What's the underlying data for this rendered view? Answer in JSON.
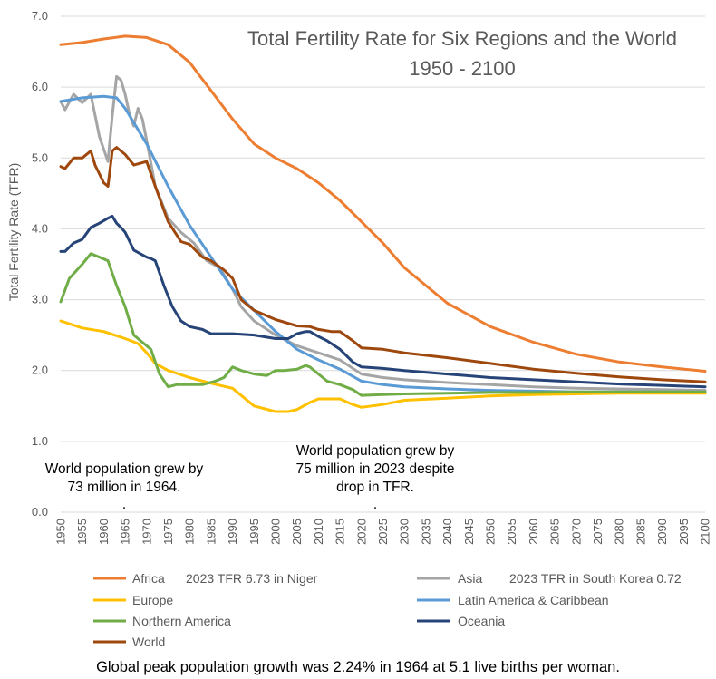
{
  "chart_data": {
    "type": "line",
    "title": "Total Fertility Rate for Six Regions and the World",
    "subtitle": "1950 - 2100",
    "ylabel": "Total Fertility Rate (TFR)",
    "xlabel": "",
    "ylim": [
      0.0,
      7.0
    ],
    "xlim": [
      1950,
      2100
    ],
    "y_ticks": [
      "0.0",
      "1.0",
      "2.0",
      "3.0",
      "4.0",
      "5.0",
      "6.0",
      "7.0"
    ],
    "x_ticks": [
      "1950",
      "1955",
      "1960",
      "1965",
      "1970",
      "1975",
      "1980",
      "1985",
      "1990",
      "1995",
      "2000",
      "2005",
      "2010",
      "2015",
      "2020",
      "2025",
      "2030",
      "2035",
      "2040",
      "2045",
      "2050",
      "2055",
      "2060",
      "2065",
      "2070",
      "2075",
      "2080",
      "2085",
      "2090",
      "2095",
      "2100"
    ],
    "grid": "horizontal",
    "legend_position": "bottom",
    "series": [
      {
        "name": "Africa",
        "color": "#ED7D31",
        "note": "2023 TFR 6.73 in Niger",
        "x": [
          1950,
          1955,
          1960,
          1965,
          1970,
          1975,
          1980,
          1985,
          1990,
          1995,
          2000,
          2005,
          2010,
          2015,
          2020,
          2025,
          2030,
          2040,
          2050,
          2060,
          2070,
          2080,
          2090,
          2100
        ],
        "y": [
          6.6,
          6.63,
          6.68,
          6.72,
          6.7,
          6.6,
          6.35,
          5.95,
          5.55,
          5.2,
          5.0,
          4.85,
          4.65,
          4.4,
          4.1,
          3.8,
          3.45,
          2.95,
          2.62,
          2.4,
          2.23,
          2.12,
          2.05,
          1.99
        ]
      },
      {
        "name": "Asia",
        "color": "#A5A5A5",
        "note": "2023 TFR in South Korea 0.72",
        "x": [
          1950,
          1951,
          1953,
          1955,
          1957,
          1959,
          1961,
          1962,
          1963,
          1964,
          1965,
          1966,
          1967,
          1968,
          1969,
          1970,
          1972,
          1975,
          1978,
          1981,
          1984,
          1987,
          1990,
          1992,
          1995,
          2000,
          2005,
          2010,
          2015,
          2020,
          2025,
          2030,
          2040,
          2050,
          2060,
          2070,
          2080,
          2090,
          2100
        ],
        "y": [
          5.8,
          5.68,
          5.9,
          5.78,
          5.9,
          5.3,
          4.95,
          5.6,
          6.15,
          6.1,
          5.9,
          5.62,
          5.45,
          5.7,
          5.55,
          5.25,
          4.6,
          4.15,
          3.95,
          3.8,
          3.55,
          3.45,
          3.15,
          2.9,
          2.7,
          2.5,
          2.35,
          2.25,
          2.15,
          1.95,
          1.9,
          1.87,
          1.83,
          1.8,
          1.77,
          1.75,
          1.74,
          1.73,
          1.72
        ]
      },
      {
        "name": "Europe",
        "color": "#FFC000",
        "note": "",
        "x": [
          1950,
          1955,
          1960,
          1965,
          1968,
          1970,
          1972,
          1975,
          1980,
          1985,
          1990,
          1995,
          2000,
          2003,
          2005,
          2008,
          2010,
          2015,
          2018,
          2020,
          2025,
          2030,
          2040,
          2050,
          2060,
          2070,
          2080,
          2090,
          2100
        ],
        "y": [
          2.7,
          2.6,
          2.55,
          2.45,
          2.38,
          2.25,
          2.1,
          2.0,
          1.9,
          1.82,
          1.75,
          1.5,
          1.42,
          1.42,
          1.45,
          1.55,
          1.6,
          1.6,
          1.52,
          1.48,
          1.52,
          1.58,
          1.61,
          1.64,
          1.66,
          1.67,
          1.68,
          1.68,
          1.68
        ]
      },
      {
        "name": "Latin America & Caribbean",
        "color": "#5B9BD5",
        "note": "",
        "x": [
          1950,
          1955,
          1960,
          1963,
          1965,
          1970,
          1975,
          1980,
          1985,
          1990,
          1995,
          2000,
          2005,
          2010,
          2015,
          2020,
          2025,
          2030,
          2040,
          2050,
          2060,
          2070,
          2080,
          2090,
          2100
        ],
        "y": [
          5.8,
          5.85,
          5.87,
          5.85,
          5.7,
          5.2,
          4.6,
          4.05,
          3.6,
          3.15,
          2.85,
          2.55,
          2.3,
          2.15,
          2.02,
          1.85,
          1.8,
          1.77,
          1.74,
          1.72,
          1.71,
          1.7,
          1.7,
          1.7,
          1.7
        ]
      },
      {
        "name": "Northern America",
        "color": "#70AD47",
        "note": "",
        "x": [
          1950,
          1952,
          1955,
          1957,
          1959,
          1961,
          1963,
          1965,
          1967,
          1969,
          1971,
          1973,
          1975,
          1977,
          1980,
          1983,
          1986,
          1988,
          1990,
          1992,
          1995,
          1998,
          2000,
          2002,
          2005,
          2007,
          2008,
          2010,
          2012,
          2015,
          2018,
          2020,
          2025,
          2030,
          2040,
          2050,
          2060,
          2070,
          2080,
          2090,
          2100
        ],
        "y": [
          2.97,
          3.3,
          3.5,
          3.65,
          3.6,
          3.55,
          3.2,
          2.9,
          2.5,
          2.4,
          2.3,
          1.95,
          1.77,
          1.8,
          1.8,
          1.8,
          1.85,
          1.9,
          2.05,
          2.0,
          1.95,
          1.93,
          2.0,
          2.0,
          2.02,
          2.07,
          2.05,
          1.95,
          1.85,
          1.8,
          1.73,
          1.65,
          1.66,
          1.67,
          1.68,
          1.69,
          1.69,
          1.7,
          1.7,
          1.7,
          1.7
        ]
      },
      {
        "name": "Oceania",
        "color": "#264478",
        "note": "",
        "x": [
          1950,
          1951,
          1953,
          1955,
          1957,
          1959,
          1961,
          1962,
          1963,
          1964,
          1965,
          1967,
          1970,
          1971,
          1972,
          1974,
          1976,
          1978,
          1980,
          1983,
          1985,
          1990,
          1995,
          2000,
          2003,
          2005,
          2007,
          2008,
          2010,
          2012,
          2015,
          2018,
          2020,
          2025,
          2030,
          2040,
          2050,
          2060,
          2070,
          2080,
          2090,
          2100
        ],
        "y": [
          3.68,
          3.68,
          3.8,
          3.85,
          4.02,
          4.08,
          4.15,
          4.18,
          4.08,
          4.02,
          3.95,
          3.7,
          3.6,
          3.58,
          3.55,
          3.2,
          2.9,
          2.7,
          2.62,
          2.58,
          2.52,
          2.52,
          2.5,
          2.45,
          2.45,
          2.52,
          2.55,
          2.55,
          2.48,
          2.42,
          2.3,
          2.12,
          2.05,
          2.03,
          2.0,
          1.95,
          1.9,
          1.87,
          1.84,
          1.81,
          1.79,
          1.77
        ]
      },
      {
        "name": "World",
        "color": "#9E480E",
        "note": "",
        "x": [
          1950,
          1951,
          1953,
          1955,
          1957,
          1958,
          1960,
          1961,
          1962,
          1963,
          1965,
          1967,
          1970,
          1972,
          1975,
          1978,
          1980,
          1983,
          1985,
          1988,
          1990,
          1992,
          1995,
          2000,
          2005,
          2008,
          2010,
          2013,
          2015,
          2018,
          2020,
          2025,
          2030,
          2040,
          2050,
          2060,
          2070,
          2080,
          2090,
          2100
        ],
        "y": [
          4.88,
          4.85,
          5.0,
          5.0,
          5.1,
          4.9,
          4.65,
          4.6,
          5.1,
          5.15,
          5.05,
          4.9,
          4.95,
          4.6,
          4.1,
          3.82,
          3.78,
          3.6,
          3.55,
          3.42,
          3.3,
          3.0,
          2.85,
          2.72,
          2.63,
          2.62,
          2.58,
          2.55,
          2.55,
          2.42,
          2.32,
          2.3,
          2.25,
          2.18,
          2.1,
          2.02,
          1.96,
          1.91,
          1.87,
          1.84
        ]
      }
    ],
    "annotations": [
      {
        "text": "World population grew by",
        "text2": "73 million in 1964.",
        "x": 1964
      },
      {
        "text": "World population grew by",
        "text2": "75 million in 2023 despite",
        "text3": "drop in TFR.",
        "x": 2023
      }
    ]
  },
  "footer": "Global peak population growth was 2.24% in 1964 at 5.1 live births per woman."
}
